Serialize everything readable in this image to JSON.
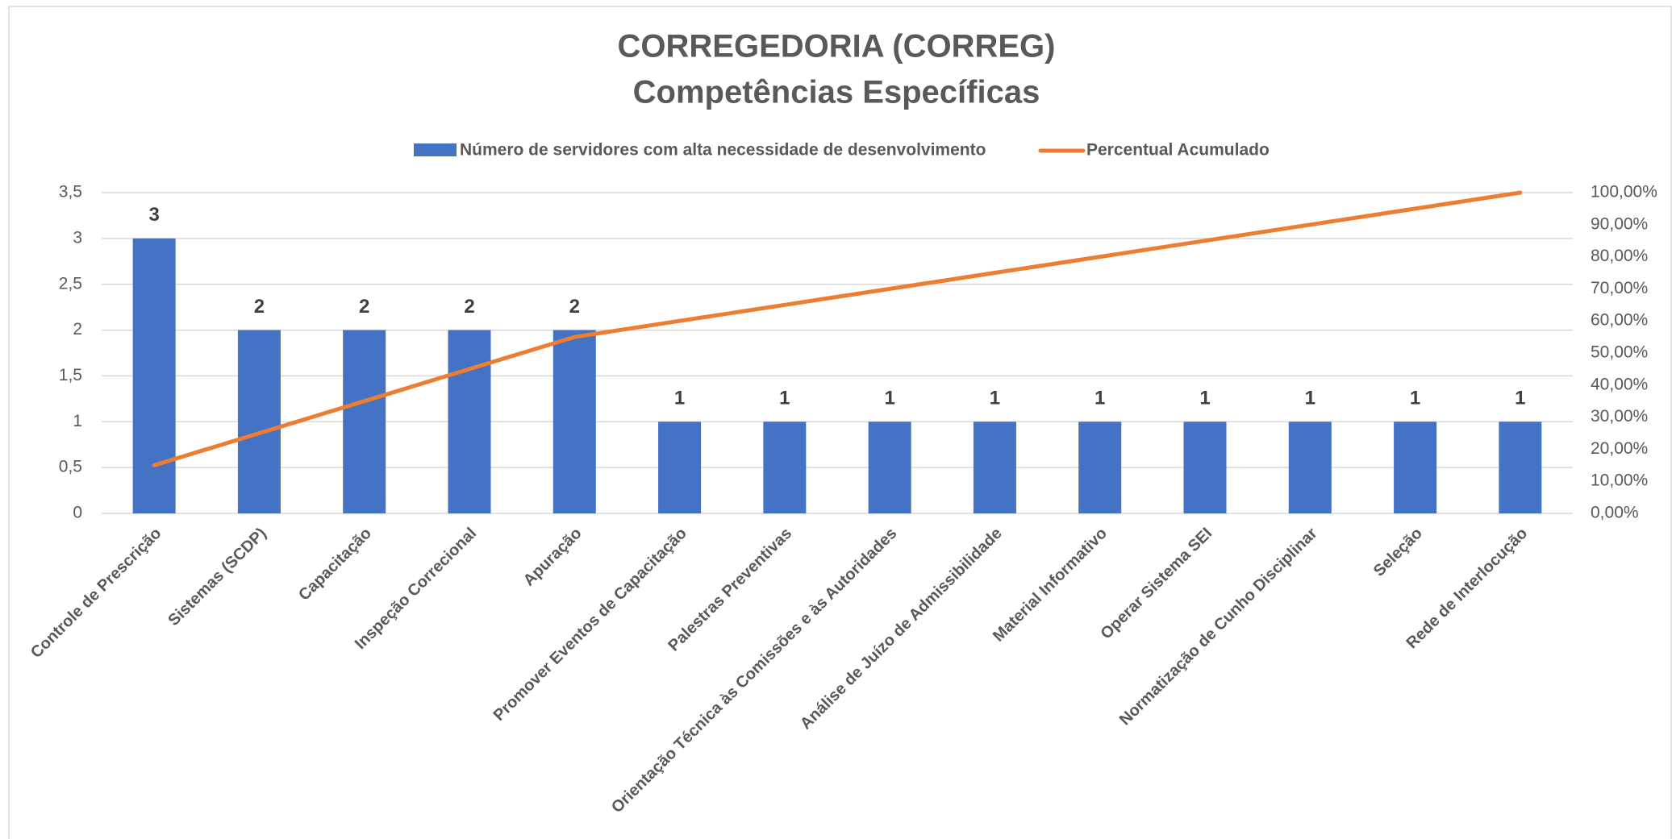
{
  "chart_data": {
    "type": "bar",
    "title": "CORREGEDORIA (CORREG)",
    "subtitle": "Competências Específicas",
    "categories": [
      "Controle de Prescrição",
      "Sistemas (SCDP)",
      "Capacitação",
      "Inspeção Correcional",
      "Apuração",
      "Promover Eventos de Capacitação",
      "Palestras Preventivas",
      "Orientação Técnica às Comissões e às Autoridades",
      "Análise de Juízo de Admissibilidade",
      "Material Informativo",
      "Operar Sistema SEI",
      "Normatização de Cunho Disciplinar",
      "Seleção",
      "Rede de Interlocução"
    ],
    "series": [
      {
        "name": "Número de servidores com alta necessidade de desenvolvimento",
        "type": "bar",
        "color": "#4472c4",
        "values": [
          3,
          2,
          2,
          2,
          2,
          1,
          1,
          1,
          1,
          1,
          1,
          1,
          1,
          1
        ]
      },
      {
        "name": "Percentual Acumulado",
        "type": "line",
        "axis": "y2",
        "color": "#ed7d31",
        "values": [
          15,
          25,
          35,
          45,
          55,
          60,
          65,
          70,
          75,
          80,
          85,
          90,
          95,
          100
        ]
      }
    ],
    "ylim": [
      0,
      3.5
    ],
    "yticks": [
      0,
      {
        "value": 0.5,
        "label": "0,5"
      },
      1,
      {
        "value": 1.5,
        "label": "1,5"
      },
      2,
      {
        "value": 2.5,
        "label": "2,5"
      },
      3,
      {
        "value": 3.5,
        "label": "3,5"
      }
    ],
    "y2lim": [
      0,
      100
    ],
    "y2ticks": [
      {
        "value": 0,
        "label": "0,00%"
      },
      {
        "value": 10,
        "label": "10,00%"
      },
      {
        "value": 20,
        "label": "20,00%"
      },
      {
        "value": 30,
        "label": "30,00%"
      },
      {
        "value": 40,
        "label": "40,00%"
      },
      {
        "value": 50,
        "label": "50,00%"
      },
      {
        "value": 60,
        "label": "60,00%"
      },
      {
        "value": 70,
        "label": "70,00%"
      },
      {
        "value": 80,
        "label": "80,00%"
      },
      {
        "value": 90,
        "label": "90,00%"
      },
      {
        "value": 100,
        "label": "100,00%"
      }
    ],
    "grid": true,
    "legend": "top"
  }
}
